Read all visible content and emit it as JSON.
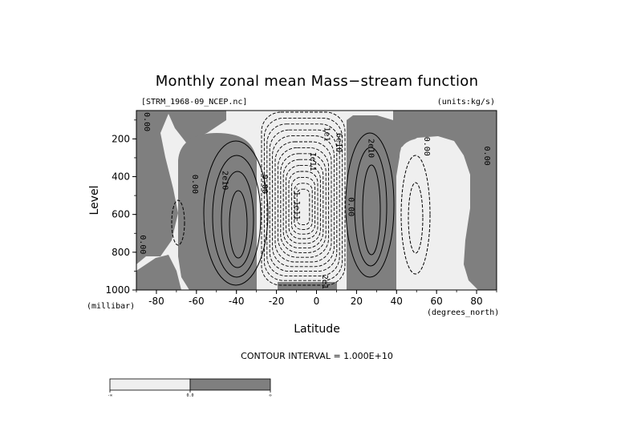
{
  "chart_data": {
    "type": "contour",
    "title": "Monthly zonal mean Mass−stream function",
    "file_label": "[STRM_1968-09_NCEP.nc]",
    "units_label": "(units:kg/s)",
    "xlabel": "Latitude",
    "x_units": "(degrees_north)",
    "ylabel": "Level",
    "y_units": "(millibar)",
    "xlim": [
      -90,
      90
    ],
    "ylim": [
      1000,
      50
    ],
    "x_ticks": [
      -80,
      -60,
      -40,
      -20,
      0,
      20,
      40,
      60,
      80
    ],
    "y_ticks": [
      200,
      400,
      600,
      800,
      1000
    ],
    "contour_interval_label": "CONTOUR INTERVAL = 1.000E+10",
    "contour_interval": 10000000000,
    "shading": {
      "negative": "#efefef",
      "positive": "#7f7f7f"
    },
    "contour_labels": [
      {
        "text": "0.00",
        "lat": -86,
        "lev": 110
      },
      {
        "text": "0.00",
        "lat": -62,
        "lev": 440
      },
      {
        "text": "2e10",
        "lat": -47,
        "lev": 420
      },
      {
        "text": "0.00",
        "lat": -27,
        "lev": 440
      },
      {
        "text": "-1.1e11",
        "lat": -11,
        "lev": 540
      },
      {
        "text": "1e11",
        "lat": -3,
        "lev": 320
      },
      {
        "text": "1e1",
        "lat": 4,
        "lev": 175
      },
      {
        "text": "6e10",
        "lat": 10,
        "lev": 220
      },
      {
        "text": "0.00",
        "lat": 16,
        "lev": 560
      },
      {
        "text": "2e10",
        "lat": 26,
        "lev": 250
      },
      {
        "text": "0.00",
        "lat": 54,
        "lev": 240
      },
      {
        "text": "0.00",
        "lat": 84,
        "lev": 290
      },
      {
        "text": "0.00",
        "lat": -88,
        "lev": 760
      },
      {
        "text": "2e10",
        "lat": 3,
        "lev": 970
      }
    ],
    "colorbar": {
      "labels": [
        "-∞",
        "0.0",
        "∞"
      ]
    }
  }
}
